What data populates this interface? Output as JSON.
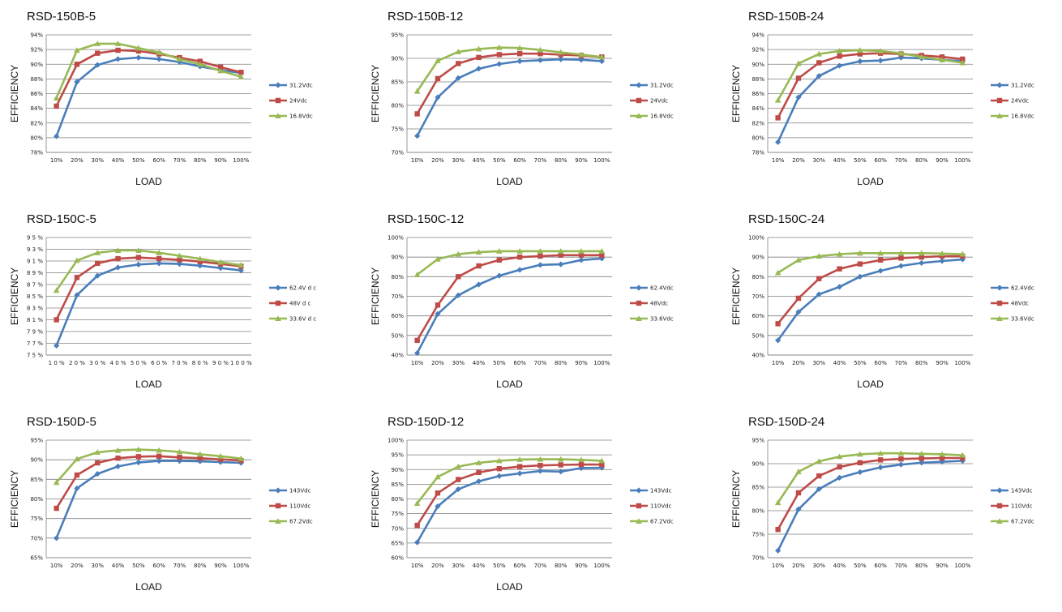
{
  "colors": {
    "series1": "#4a7ebb",
    "series2": "#be4b48",
    "series3": "#98b954",
    "grid": "#7f7f7f"
  },
  "chart_data": [
    {
      "type": "line",
      "title": "RSD-150B-5",
      "xlabel": "LOAD",
      "ylabel": "EFFICIENCY",
      "categories": [
        "10%",
        "20%",
        "30%",
        "40%",
        "50%",
        "60%",
        "70%",
        "80%",
        "90%",
        "100%"
      ],
      "yticks": [
        "78%",
        "80%",
        "82%",
        "84%",
        "86%",
        "88%",
        "90%",
        "92%",
        "94%"
      ],
      "ylim": [
        78,
        94
      ],
      "series": [
        {
          "name": "31.2Vdc",
          "values": [
            80.2,
            87.6,
            89.9,
            90.7,
            90.9,
            90.7,
            90.3,
            89.7,
            89.2,
            88.8
          ]
        },
        {
          "name": "24Vdc",
          "values": [
            84.3,
            90.0,
            91.5,
            91.9,
            91.8,
            91.4,
            90.9,
            90.4,
            89.6,
            88.9
          ]
        },
        {
          "name": "16.8Vdc",
          "values": [
            85.4,
            91.9,
            92.8,
            92.8,
            92.2,
            91.6,
            90.7,
            90.0,
            89.1,
            88.3
          ]
        }
      ]
    },
    {
      "type": "line",
      "title": "RSD-150B-12",
      "xlabel": "LOAD",
      "ylabel": "EFFICIENCY",
      "categories": [
        "10%",
        "20%",
        "30%",
        "40%",
        "50%",
        "60%",
        "70%",
        "80%",
        "90%",
        "100%"
      ],
      "yticks": [
        "70%",
        "75%",
        "80%",
        "85%",
        "90%",
        "95%"
      ],
      "ylim": [
        70,
        95
      ],
      "series": [
        {
          "name": "31.2Vdc",
          "values": [
            73.5,
            81.7,
            85.8,
            87.8,
            88.8,
            89.4,
            89.6,
            89.8,
            89.7,
            89.4
          ]
        },
        {
          "name": "24Vdc",
          "values": [
            78.2,
            85.7,
            88.9,
            90.2,
            90.8,
            91.0,
            91.0,
            90.8,
            90.6,
            90.3
          ]
        },
        {
          "name": "16.8Vdc",
          "values": [
            83.0,
            89.5,
            91.4,
            92.0,
            92.3,
            92.2,
            91.8,
            91.3,
            90.8,
            90.3
          ]
        }
      ]
    },
    {
      "type": "line",
      "title": "RSD-150B-24",
      "xlabel": "LOAD",
      "ylabel": "EFFICIENCY",
      "categories": [
        "10%",
        "20%",
        "30%",
        "40%",
        "50%",
        "60%",
        "70%",
        "80%",
        "90%",
        "100%"
      ],
      "yticks": [
        "78%",
        "80%",
        "82%",
        "84%",
        "86%",
        "88%",
        "90%",
        "92%",
        "94%"
      ],
      "ylim": [
        78,
        94
      ],
      "series": [
        {
          "name": "31.2Vdc",
          "values": [
            79.4,
            85.5,
            88.4,
            89.8,
            90.4,
            90.5,
            90.9,
            90.8,
            90.6,
            90.4
          ]
        },
        {
          "name": "24Vdc",
          "values": [
            82.7,
            88.1,
            90.2,
            91.1,
            91.4,
            91.5,
            91.4,
            91.2,
            91.0,
            90.7
          ]
        },
        {
          "name": "16.8Vdc",
          "values": [
            85.1,
            90.1,
            91.4,
            91.8,
            91.9,
            91.8,
            91.5,
            91.0,
            90.6,
            90.2
          ]
        }
      ]
    },
    {
      "type": "line",
      "title": "RSD-150C-5",
      "xlabel": "LOAD",
      "ylabel": "EFFICIENCY",
      "categories": [
        "1 0 %",
        "2 0 %",
        "3 0 %",
        "4 0 %",
        "5 0 %",
        "6 0 %",
        "7 0 %",
        "8 0 %",
        "9 0 %",
        "1 0 0 %"
      ],
      "yticks": [
        "7 5 %",
        "7 7 %",
        "7 9 %",
        "8 1 %",
        "8 3 %",
        "8 5 %",
        "8 7 %",
        "8 9 %",
        "9 1 %",
        "9 3 %",
        "9 5 %"
      ],
      "ylim": [
        75,
        95
      ],
      "series": [
        {
          "name": "62.4V d c",
          "values": [
            76.6,
            85.2,
            88.5,
            89.9,
            90.4,
            90.6,
            90.5,
            90.2,
            89.8,
            89.4
          ]
        },
        {
          "name": "48V d c",
          "values": [
            81.0,
            88.2,
            90.6,
            91.4,
            91.6,
            91.4,
            91.2,
            90.9,
            90.5,
            90.1
          ]
        },
        {
          "name": "33.6V d c",
          "values": [
            86.0,
            91.1,
            92.4,
            92.8,
            92.8,
            92.4,
            91.9,
            91.4,
            90.8,
            90.3
          ]
        }
      ]
    },
    {
      "type": "line",
      "title": "RSD-150C-12",
      "xlabel": "LOAD",
      "ylabel": "EFFICIENCY",
      "categories": [
        "10%",
        "20%",
        "30%",
        "40%",
        "50%",
        "60%",
        "70%",
        "80%",
        "90%",
        "100%"
      ],
      "yticks": [
        "40%",
        "50%",
        "60%",
        "70%",
        "80%",
        "90%",
        "100%"
      ],
      "ylim": [
        40,
        100
      ],
      "series": [
        {
          "name": "62.4Vdc",
          "values": [
            41,
            61,
            70.5,
            76,
            80.5,
            83.5,
            86,
            86.3,
            88.5,
            89.3
          ]
        },
        {
          "name": "48Vdc",
          "values": [
            47.5,
            65.5,
            80,
            85.5,
            88.5,
            90,
            90.5,
            91,
            91,
            91
          ]
        },
        {
          "name": "33.6Vdc",
          "values": [
            81,
            89,
            91.5,
            92.5,
            93,
            93,
            93,
            93,
            93,
            93
          ]
        }
      ]
    },
    {
      "type": "line",
      "title": "RSD-150C-24",
      "xlabel": "LOAD",
      "ylabel": "EFFICIENCY",
      "categories": [
        "10%",
        "20%",
        "30%",
        "40%",
        "50%",
        "60%",
        "70%",
        "80%",
        "90%",
        "100%"
      ],
      "yticks": [
        "40%",
        "50%",
        "60%",
        "70%",
        "80%",
        "90%",
        "100%"
      ],
      "ylim": [
        40,
        100
      ],
      "series": [
        {
          "name": "62.4Vdc",
          "values": [
            47.5,
            62,
            71,
            74.8,
            80,
            83,
            85.5,
            87,
            88,
            88.8
          ]
        },
        {
          "name": "48Vdc",
          "values": [
            56,
            69,
            79,
            84,
            86.5,
            88.5,
            89.5,
            90,
            90.5,
            90.5
          ]
        },
        {
          "name": "33.6Vdc",
          "values": [
            82,
            88.5,
            90.5,
            91.5,
            92,
            92,
            92,
            92,
            91.8,
            91.5
          ]
        }
      ]
    },
    {
      "type": "line",
      "title": "RSD-150D-5",
      "xlabel": "LOAD",
      "ylabel": "EFFICIENCY",
      "categories": [
        "10%",
        "20%",
        "30%",
        "40%",
        "50%",
        "60%",
        "70%",
        "80%",
        "90%",
        "100%"
      ],
      "yticks": [
        "65%",
        "70%",
        "75%",
        "80%",
        "85%",
        "90%",
        "95%"
      ],
      "ylim": [
        65,
        95
      ],
      "series": [
        {
          "name": "143Vdc",
          "values": [
            70,
            82.7,
            86.4,
            88.3,
            89.3,
            89.7,
            89.7,
            89.6,
            89.4,
            89.2
          ]
        },
        {
          "name": "110Vdc",
          "values": [
            77.6,
            86.1,
            89.2,
            90.4,
            90.8,
            90.9,
            90.6,
            90.4,
            90.1,
            89.8
          ]
        },
        {
          "name": "67.2Vdc",
          "values": [
            84.2,
            90.2,
            91.9,
            92.4,
            92.6,
            92.4,
            92,
            91.4,
            90.9,
            90.3
          ]
        }
      ]
    },
    {
      "type": "line",
      "title": "RSD-150D-12",
      "xlabel": "LOAD",
      "ylabel": "EFFICIENCY",
      "categories": [
        "10%",
        "20%",
        "30%",
        "40%",
        "50%",
        "60%",
        "70%",
        "80%",
        "90%",
        "100%"
      ],
      "yticks": [
        "60%",
        "65%",
        "70%",
        "75%",
        "80%",
        "85%",
        "90%",
        "95%",
        "100%"
      ],
      "ylim": [
        60,
        100
      ],
      "series": [
        {
          "name": "143Vdc",
          "values": [
            65.2,
            77.5,
            83.3,
            86,
            87.8,
            88.7,
            89.5,
            89.3,
            90.5,
            90.6
          ]
        },
        {
          "name": "110Vdc",
          "values": [
            71,
            82,
            86.6,
            89,
            90.3,
            91,
            91.4,
            91.6,
            91.7,
            91.7
          ]
        },
        {
          "name": "67.2Vdc",
          "values": [
            78.5,
            87.5,
            91,
            92.3,
            93,
            93.4,
            93.5,
            93.5,
            93.3,
            93
          ]
        }
      ]
    },
    {
      "type": "line",
      "title": "RSD-150D-24",
      "xlabel": "",
      "ylabel": "EFFICIENCY",
      "categories": [
        "10%",
        "20%",
        "30%",
        "40%",
        "50%",
        "60%",
        "70%",
        "80%",
        "90%",
        "100%"
      ],
      "yticks": [
        "70%",
        "75%",
        "80%",
        "85%",
        "90%",
        "95%"
      ],
      "ylim": [
        70,
        95
      ],
      "series": [
        {
          "name": "143Vdc",
          "values": [
            71.5,
            80.3,
            84.6,
            87,
            88.2,
            89.2,
            89.8,
            90.2,
            90.4,
            90.6
          ]
        },
        {
          "name": "110Vdc",
          "values": [
            76,
            83.8,
            87.4,
            89.3,
            90.2,
            90.8,
            91,
            91.1,
            91.2,
            91.2
          ]
        },
        {
          "name": "67.2Vdc",
          "values": [
            81.7,
            88.3,
            90.5,
            91.5,
            92,
            92.2,
            92.2,
            92.1,
            92,
            91.8
          ]
        }
      ]
    }
  ]
}
